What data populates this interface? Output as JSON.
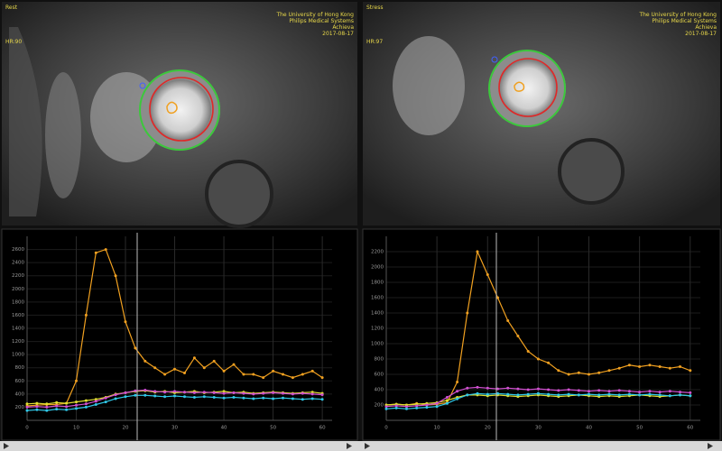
{
  "images": [
    {
      "header": "Rest",
      "hr": "HR:90",
      "institution": "The University of Hong Kong",
      "vendor": "Philips Medical Systems",
      "model": "Achieva",
      "date": "2017-08-17"
    },
    {
      "header": "Stress",
      "hr": "HR:97",
      "institution": "The University of Hong Kong",
      "vendor": "Philips Medical Systems",
      "model": "Achieva",
      "date": "2017-08-17"
    }
  ],
  "chart_data": [
    {
      "type": "line",
      "x": [
        0,
        2,
        4,
        6,
        8,
        10,
        12,
        14,
        16,
        18,
        20,
        22,
        24,
        26,
        28,
        30,
        32,
        34,
        36,
        38,
        40,
        42,
        44,
        46,
        48,
        50,
        52,
        54,
        56,
        58,
        60
      ],
      "xlim": [
        0,
        62
      ],
      "xticks": [
        0,
        10,
        20,
        30,
        40,
        50,
        60
      ],
      "ylim": [
        0,
        2800
      ],
      "yticks": [
        200,
        400,
        600,
        800,
        1000,
        1200,
        1400,
        1600,
        1800,
        2000,
        2200,
        2400,
        2600
      ],
      "grid": true,
      "series": [
        {
          "color": "#f0a020",
          "values": [
            220,
            230,
            240,
            240,
            260,
            600,
            1600,
            2550,
            2600,
            2200,
            1500,
            1100,
            900,
            800,
            700,
            780,
            720,
            950,
            800,
            900,
            750,
            850,
            700,
            700,
            650,
            750,
            700,
            650,
            700,
            750,
            650
          ]
        },
        {
          "color": "#e0e030",
          "values": [
            250,
            260,
            250,
            270,
            260,
            280,
            300,
            320,
            350,
            400,
            420,
            440,
            450,
            430,
            440,
            420,
            430,
            440,
            420,
            430,
            440,
            420,
            430,
            410,
            420,
            430,
            420,
            410,
            420,
            430,
            410
          ]
        },
        {
          "color": "#d050d0",
          "values": [
            200,
            210,
            200,
            220,
            210,
            230,
            250,
            290,
            340,
            390,
            420,
            450,
            460,
            440,
            430,
            440,
            430,
            420,
            430,
            420,
            410,
            420,
            410,
            400,
            410,
            420,
            410,
            400,
            410,
            400,
            390
          ]
        },
        {
          "color": "#30c8e8",
          "values": [
            150,
            160,
            150,
            170,
            160,
            180,
            200,
            240,
            280,
            330,
            360,
            380,
            380,
            370,
            360,
            370,
            360,
            350,
            360,
            350,
            340,
            350,
            340,
            330,
            340,
            330,
            340,
            330,
            320,
            330,
            320
          ]
        }
      ]
    },
    {
      "type": "line",
      "x": [
        0,
        2,
        4,
        6,
        8,
        10,
        12,
        14,
        16,
        18,
        20,
        22,
        24,
        26,
        28,
        30,
        32,
        34,
        36,
        38,
        40,
        42,
        44,
        46,
        48,
        50,
        52,
        54,
        56,
        58,
        60
      ],
      "xlim": [
        0,
        62
      ],
      "xticks": [
        0,
        10,
        20,
        30,
        40,
        50,
        60
      ],
      "ylim": [
        0,
        2400
      ],
      "yticks": [
        200,
        400,
        600,
        800,
        1000,
        1200,
        1400,
        1600,
        1800,
        2000,
        2200
      ],
      "grid": true,
      "series": [
        {
          "color": "#f0a020",
          "values": [
            200,
            210,
            200,
            220,
            200,
            210,
            230,
            500,
            1400,
            2200,
            1900,
            1600,
            1300,
            1100,
            900,
            800,
            750,
            650,
            600,
            620,
            600,
            620,
            650,
            680,
            720,
            700,
            720,
            700,
            680,
            700,
            650
          ]
        },
        {
          "color": "#e0e030",
          "values": [
            200,
            210,
            200,
            210,
            220,
            230,
            260,
            300,
            330,
            330,
            320,
            330,
            320,
            310,
            320,
            330,
            320,
            310,
            320,
            330,
            320,
            310,
            320,
            310,
            320,
            330,
            320,
            310,
            320,
            330,
            320
          ]
        },
        {
          "color": "#d050d0",
          "values": [
            180,
            190,
            180,
            190,
            200,
            220,
            300,
            380,
            420,
            430,
            420,
            410,
            420,
            410,
            400,
            410,
            400,
            390,
            400,
            390,
            380,
            390,
            380,
            390,
            380,
            370,
            380,
            370,
            380,
            370,
            360
          ]
        },
        {
          "color": "#30c8e8",
          "values": [
            150,
            160,
            150,
            160,
            170,
            180,
            220,
            280,
            330,
            350,
            340,
            350,
            340,
            330,
            340,
            350,
            340,
            330,
            340,
            330,
            340,
            330,
            340,
            330,
            340,
            330,
            340,
            330,
            320,
            330,
            320
          ]
        }
      ]
    }
  ]
}
